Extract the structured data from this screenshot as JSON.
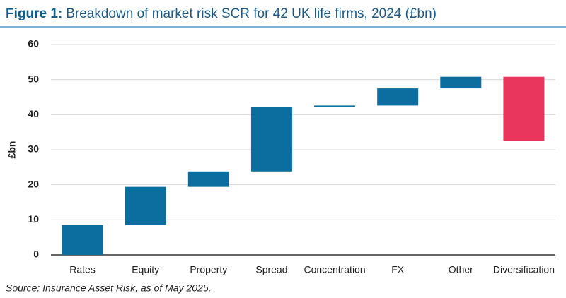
{
  "chart_data": {
    "type": "waterfall",
    "title_prefix": "Figure 1:",
    "title": "Breakdown of market risk SCR for 42 UK life firms, 2024 (£bn)",
    "y_label": "£bn",
    "source": "Source: Insurance Asset Risk, as of May 2025.",
    "categories": [
      "Rates",
      "Equity",
      "Property",
      "Spread",
      "Concentration",
      "FX",
      "Other",
      "Diversification"
    ],
    "values": [
      8.5,
      10.9,
      4.4,
      18.3,
      0.5,
      4.9,
      3.3,
      -18.2
    ],
    "color": "#0b6e9e",
    "negative_color": "#e8365d",
    "ylim": [
      0,
      60
    ],
    "yticks": [
      0,
      10,
      20,
      30,
      40,
      50,
      60
    ],
    "grid": true
  }
}
